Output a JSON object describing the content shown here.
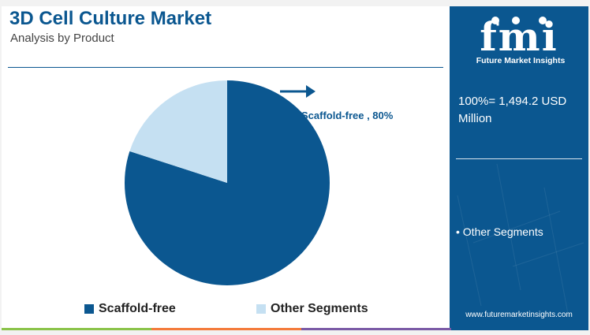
{
  "header": {
    "title": "3D Cell Culture Market",
    "subtitle": "Analysis by Product"
  },
  "callout": {
    "label": "Scaffold-free , 80%"
  },
  "side_panel": {
    "logo_text": "fmi",
    "logo_subtitle": "Future Market Insights",
    "total": "100%= 1,494.2 USD Million",
    "other_note": "• Other Segments",
    "website": "www.futuremarketinsights.com"
  },
  "legend": [
    {
      "label": "Scaffold-free",
      "color": "#0b5790"
    },
    {
      "label": "Other Segments",
      "color": "#c5e0f2"
    }
  ],
  "colors": {
    "brand": "#0b5790",
    "light": "#c5e0f2",
    "bar_green": "#8bc34a",
    "bar_orange": "#f47b3b",
    "bar_purple": "#7b5aa6"
  },
  "chart_data": {
    "type": "pie",
    "title": "3D Cell Culture Market",
    "subtitle": "Analysis by Product",
    "slices": [
      {
        "label": "Scaffold-free",
        "value": 80,
        "color": "#0b5790"
      },
      {
        "label": "Other Segments",
        "value": 20,
        "color": "#c5e0f2"
      }
    ],
    "total_label": "100%= 1,494.2 USD Million",
    "legend_position": "bottom"
  }
}
